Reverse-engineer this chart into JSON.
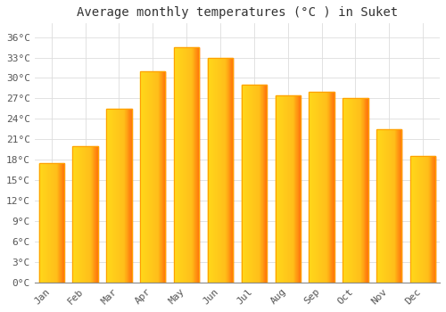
{
  "title": "Average monthly temperatures (°C ) in Suket",
  "months": [
    "Jan",
    "Feb",
    "Mar",
    "Apr",
    "May",
    "Jun",
    "Jul",
    "Aug",
    "Sep",
    "Oct",
    "Nov",
    "Dec"
  ],
  "values": [
    17.5,
    20.0,
    25.5,
    31.0,
    34.5,
    33.0,
    29.0,
    27.5,
    28.0,
    27.0,
    22.5,
    18.5
  ],
  "bar_color_center": "#FFD54F",
  "bar_color_edge": "#FFA000",
  "background_color": "#FFFFFF",
  "grid_color": "#DDDDDD",
  "ylim": [
    0,
    38
  ],
  "yticks": [
    0,
    3,
    6,
    9,
    12,
    15,
    18,
    21,
    24,
    27,
    30,
    33,
    36
  ],
  "title_fontsize": 10,
  "tick_fontsize": 8,
  "title_color": "#333333",
  "tick_color": "#555555",
  "bar_width": 0.75
}
